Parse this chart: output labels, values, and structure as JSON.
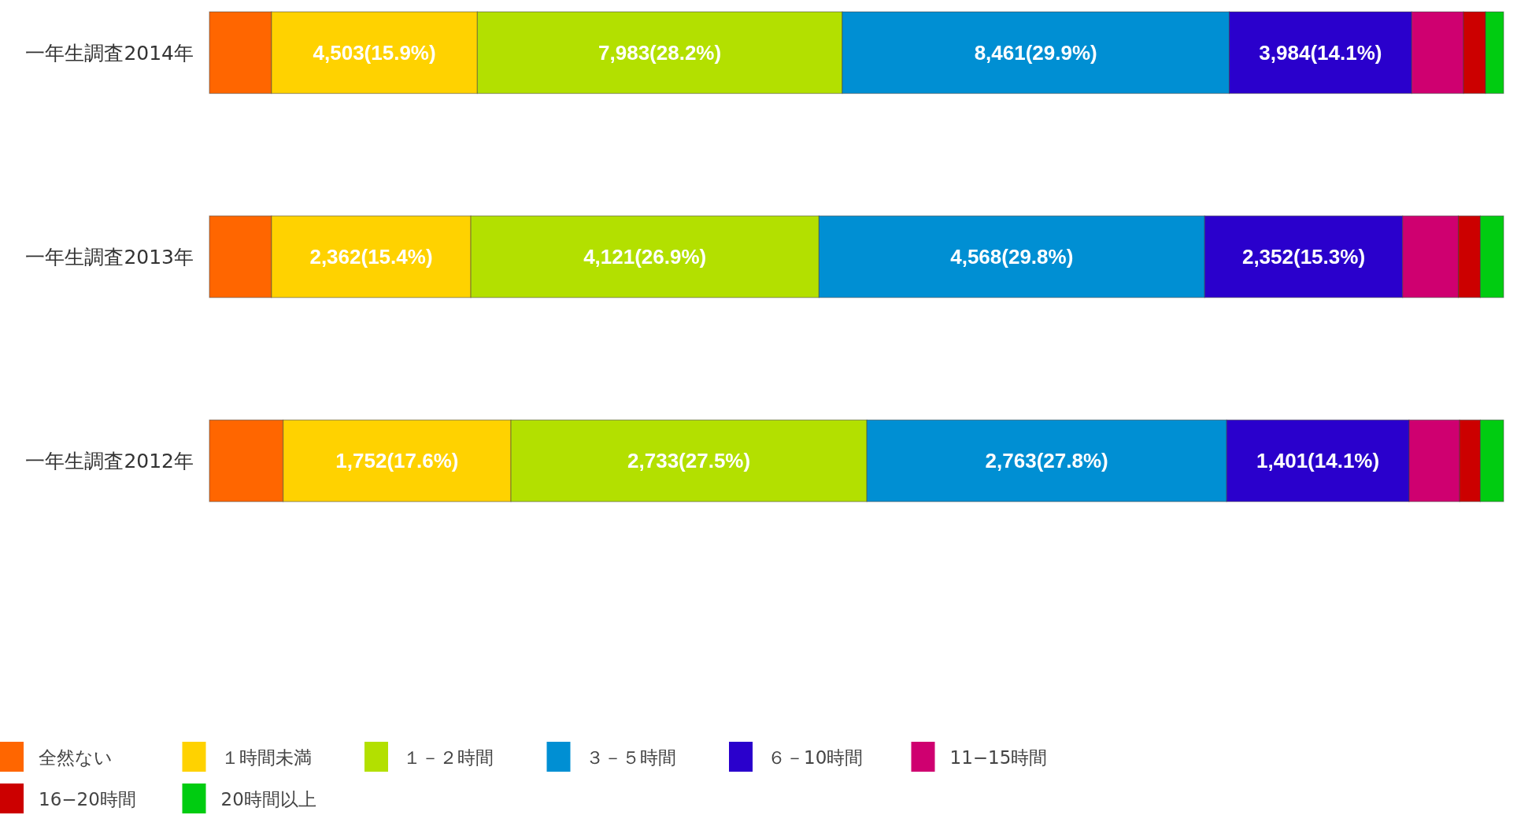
{
  "chart_data": {
    "type": "bar",
    "orientation": "horizontal",
    "stacked": true,
    "categories": [
      "一年生調査2014年",
      "一年生調査2013年",
      "一年生調査2012年"
    ],
    "xlim": [
      0,
      100
    ],
    "tick_labels": "y",
    "legend": "bottom left",
    "series": [
      {
        "name": "全然ない",
        "color": "#ff6600",
        "values": [
          4.8,
          4.8,
          5.7
        ]
      },
      {
        "name": "１時間未満",
        "color": "#ffd200",
        "values": [
          15.9,
          15.4,
          17.6
        ],
        "value_labels": [
          "4,503(15.9%)",
          "2,362(15.4%)",
          "1,752(17.6%)"
        ]
      },
      {
        "name": "１－２時間",
        "color": "#b3e000",
        "values": [
          28.2,
          26.9,
          27.5
        ],
        "value_labels": [
          "7,983(28.2%)",
          "4,121(26.9%)",
          "2,733(27.5%)"
        ]
      },
      {
        "name": "３－５時間",
        "color": "#008fd3",
        "values": [
          29.9,
          29.8,
          27.8
        ],
        "value_labels": [
          "8,461(29.9%)",
          "4,568(29.8%)",
          "2,763(27.8%)"
        ]
      },
      {
        "name": "６－10時間",
        "color": "#2a00cc",
        "values": [
          14.1,
          15.3,
          14.1
        ],
        "value_labels": [
          "3,984(14.1%)",
          "2,352(15.3%)",
          "1,401(14.1%)"
        ]
      },
      {
        "name": "11−15時間",
        "color": "#cf0070",
        "values": [
          4.0,
          4.3,
          3.9
        ]
      },
      {
        "name": "16−20時間",
        "color": "#cc0000",
        "values": [
          1.7,
          1.7,
          1.6
        ]
      },
      {
        "name": "20時間以上",
        "color": "#00cc11",
        "values": [
          1.4,
          1.8,
          1.8
        ]
      }
    ]
  }
}
